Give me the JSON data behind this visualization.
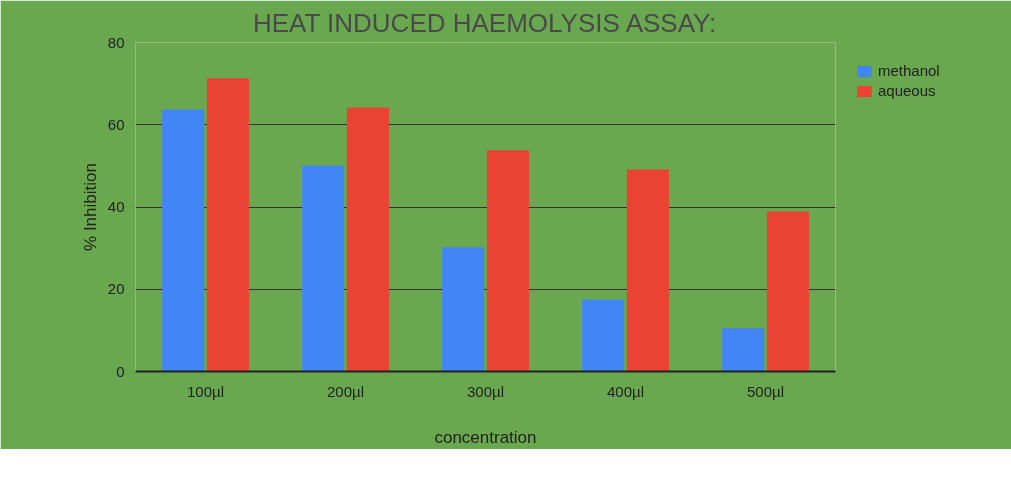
{
  "chart_data": {
    "type": "bar",
    "title": "HEAT INDUCED HAEMOLYSIS ASSAY:",
    "xlabel": "concentration",
    "ylabel": "% Inhibition",
    "categories": [
      "100µl",
      "200µl",
      "300µl",
      "400µl",
      "500µl"
    ],
    "series": [
      {
        "name": "methanol",
        "color": "#4285f4",
        "values": [
          63.7,
          50.1,
          30.2,
          17.5,
          10.5
        ]
      },
      {
        "name": "aqueous",
        "color": "#ea4335",
        "values": [
          71.3,
          64.2,
          53.8,
          49.1,
          38.9
        ]
      }
    ],
    "ylim": [
      0,
      80
    ],
    "yticks": [
      0,
      20,
      40,
      60,
      80
    ],
    "grid": "y",
    "legend": "right"
  }
}
